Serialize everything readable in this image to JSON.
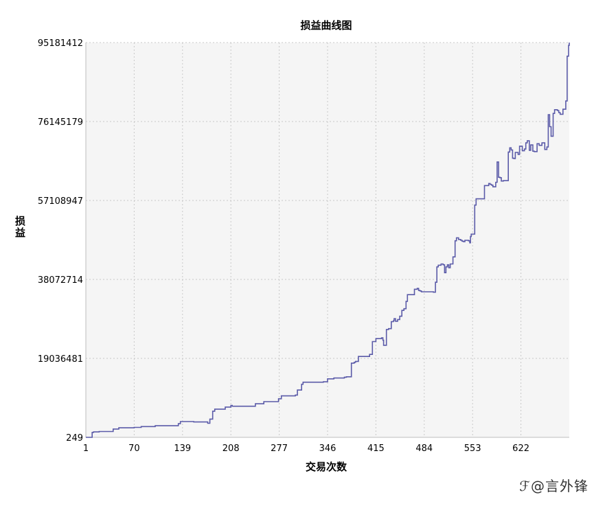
{
  "chart_data": {
    "type": "line",
    "title": "损益曲线图",
    "xlabel": "交易次数",
    "ylabel": "损益",
    "xlim": [
      1,
      691
    ],
    "ylim": [
      249,
      95181412
    ],
    "xticks": [
      "1",
      "70",
      "139",
      "208",
      "277",
      "346",
      "415",
      "484",
      "553",
      "622"
    ],
    "yticks": [
      "249",
      "19036481",
      "38072714",
      "57108947",
      "76145179",
      "95181412"
    ],
    "grid": true,
    "series": [
      {
        "color": "#5a5aa8",
        "x": [
          1,
          10,
          12,
          20,
          40,
          48,
          70,
          80,
          100,
          133,
          136,
          155,
          165,
          175,
          178,
          182,
          185,
          200,
          208,
          210,
          240,
          243,
          255,
          276,
          280,
          300,
          303,
          309,
          311,
          340,
          346,
          355,
          370,
          373,
          380,
          384,
          386,
          390,
          406,
          410,
          415,
          423,
          425,
          426,
          430,
          433,
          437,
          440,
          441,
          443,
          446,
          449,
          452,
          455,
          458,
          460,
          470,
          474,
          476,
          478,
          480,
          482,
          497,
          500,
          502,
          504,
          508,
          511,
          513,
          515,
          517,
          519,
          521,
          525,
          528,
          530,
          533,
          536,
          538,
          540,
          542,
          547,
          549,
          550,
          551,
          556,
          558,
          570,
          576,
          578,
          580,
          582,
          586,
          588,
          590,
          592,
          594,
          597,
          604,
          606,
          608,
          610,
          612,
          614,
          618,
          620,
          624,
          627,
          629,
          631,
          634,
          636,
          639,
          641,
          645,
          648,
          652,
          656,
          659,
          661,
          663,
          665,
          668,
          670,
          674,
          676,
          678,
          682,
          686,
          688,
          690,
          691
        ],
        "y": [
          249,
          1200000,
          1300000,
          1400000,
          2000000,
          2300000,
          2400000,
          2600000,
          2800000,
          3300000,
          3800000,
          3700000,
          3700000,
          3400000,
          4400000,
          6300000,
          6800000,
          7300000,
          7700000,
          7500000,
          7500000,
          8100000,
          8600000,
          9300000,
          10000000,
          10200000,
          11400000,
          12800000,
          13300000,
          13400000,
          14100000,
          14300000,
          14500000,
          14600000,
          17900000,
          18100000,
          18300000,
          19500000,
          20000000,
          23100000,
          23800000,
          24000000,
          23400000,
          22200000,
          26000000,
          26200000,
          27900000,
          28100000,
          28600000,
          28000000,
          28400000,
          29200000,
          30600000,
          31000000,
          32800000,
          34400000,
          35700000,
          35900000,
          35400000,
          35300000,
          35100000,
          35100000,
          35000000,
          37400000,
          41100000,
          41500000,
          41800000,
          41600000,
          39700000,
          41100000,
          41600000,
          40900000,
          41800000,
          43500000,
          47400000,
          48100000,
          47700000,
          47500000,
          47300000,
          47200000,
          47500000,
          47400000,
          46900000,
          48400000,
          49000000,
          56000000,
          57500000,
          60700000,
          61200000,
          61000000,
          60800000,
          60400000,
          61500000,
          66400000,
          62700000,
          62600000,
          61800000,
          61900000,
          68800000,
          69800000,
          69300000,
          67300000,
          67200000,
          68700000,
          68200000,
          70200000,
          69100000,
          69500000,
          71000000,
          71500000,
          69200000,
          70500000,
          69000000,
          68900000,
          70800000,
          70400000,
          71000000,
          69400000,
          70000000,
          77800000,
          74900000,
          72600000,
          78100000,
          79000000,
          78800000,
          78300000,
          77900000,
          79100000,
          81100000,
          91900000,
          94500000,
          95181412
        ]
      }
    ]
  },
  "watermark": "@言外锋"
}
